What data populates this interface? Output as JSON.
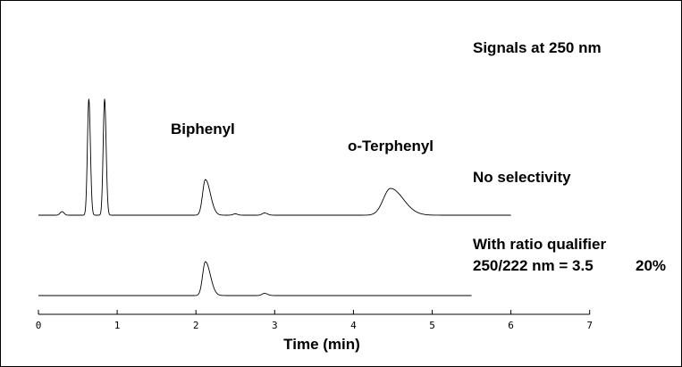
{
  "chart_data": {
    "type": "line",
    "x_axis": {
      "label": "Time (min)",
      "range": [
        0,
        7
      ],
      "ticks": [
        "0",
        "1",
        "2",
        "3",
        "4",
        "5",
        "6",
        "7"
      ]
    },
    "annotations": {
      "header": "Signals at 250 nm",
      "upper_trace_label": "No selectivity",
      "lower_trace_label_line1": "With ratio qualifier",
      "lower_trace_label_line2": "250/222 nm = 3.5",
      "lower_trace_label_tolerance": "20%"
    },
    "peak_labels": [
      {
        "text": "Biphenyl",
        "time": 2.12
      },
      {
        "text": "o-Terphenyl",
        "time": 4.47
      }
    ],
    "series": [
      {
        "id": "no-selectivity",
        "time_range": [
          0,
          6.0
        ],
        "peaks": [
          {
            "time": 0.3,
            "relative_height": 0.04,
            "width": 0.025,
            "tail": 1.0
          },
          {
            "time": 0.64,
            "relative_height": 1.3,
            "width": 0.018,
            "tail": 1.1
          },
          {
            "time": 0.84,
            "relative_height": 1.3,
            "width": 0.018,
            "tail": 1.1
          },
          {
            "time": 2.12,
            "relative_height": 0.4,
            "width": 0.035,
            "tail": 1.8
          },
          {
            "time": 2.5,
            "relative_height": 0.015,
            "width": 0.03,
            "tail": 1.0
          },
          {
            "time": 2.87,
            "relative_height": 0.025,
            "width": 0.03,
            "tail": 1.3
          },
          {
            "time": 4.47,
            "relative_height": 0.3,
            "width": 0.09,
            "tail": 1.8
          }
        ]
      },
      {
        "id": "with-ratio-qualifier",
        "time_range": [
          0,
          5.5
        ],
        "peaks": [
          {
            "time": 2.12,
            "relative_height": 0.38,
            "width": 0.035,
            "tail": 1.8
          },
          {
            "time": 2.87,
            "relative_height": 0.025,
            "width": 0.03,
            "tail": 1.3
          }
        ]
      }
    ]
  }
}
